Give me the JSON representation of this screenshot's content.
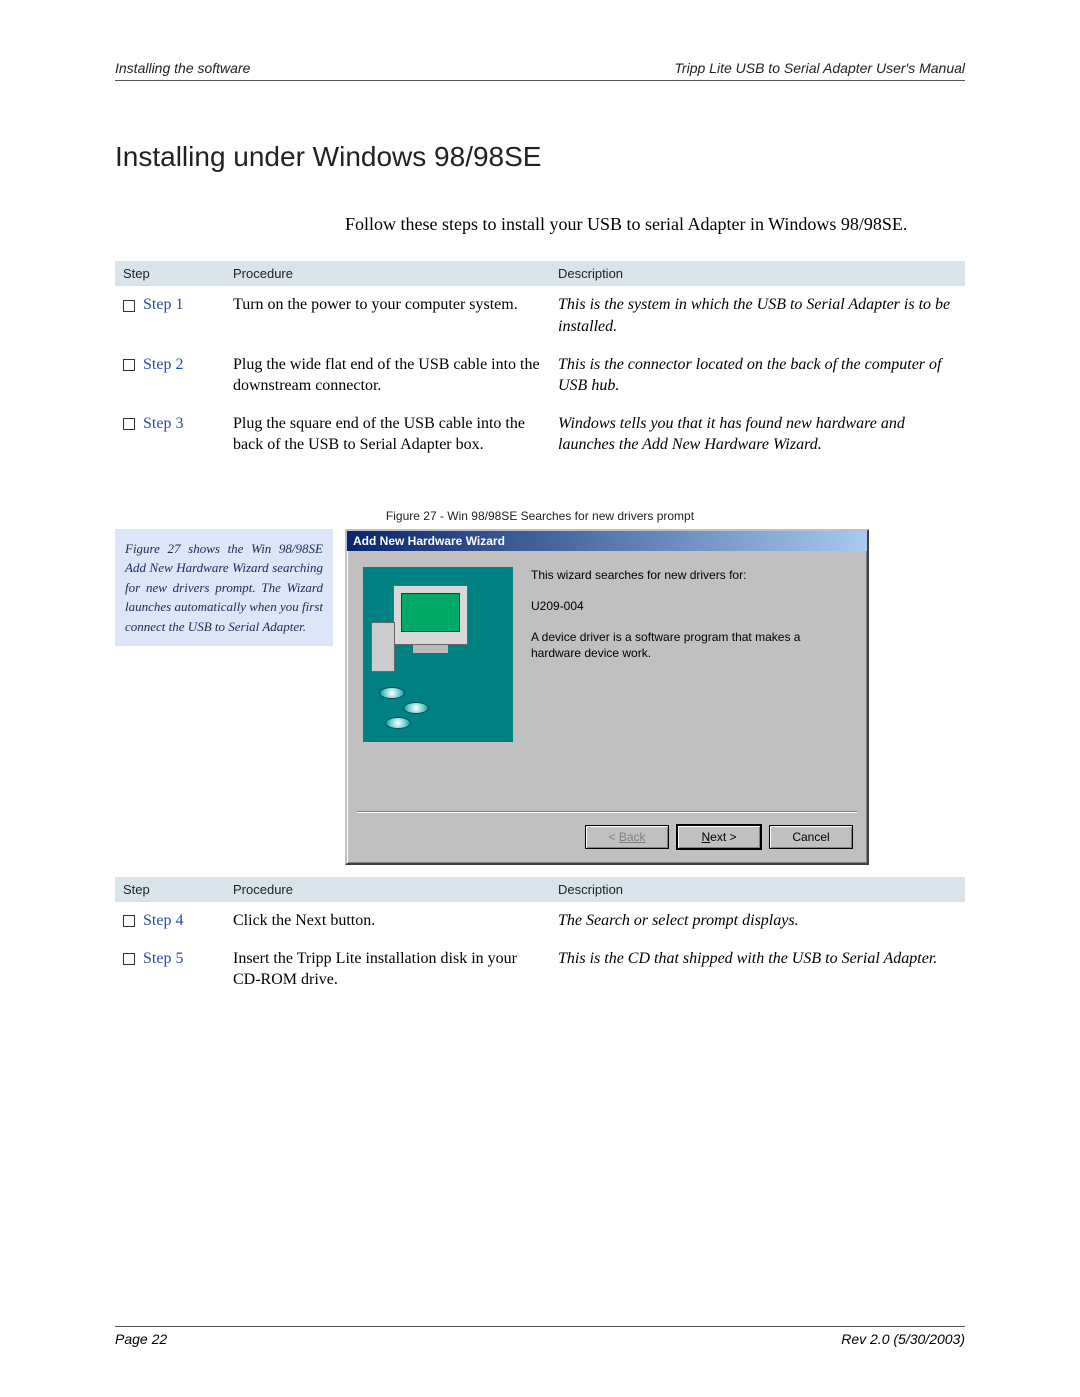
{
  "header": {
    "left": "Installing the software",
    "right": "Tripp Lite USB to Serial Adapter User's Manual"
  },
  "title": "Installing under Windows 98/98SE",
  "intro": "Follow these steps to install your USB to serial Adapter in Windows 98/98SE.",
  "table_headers": {
    "step": "Step",
    "procedure": "Procedure",
    "description": "Description"
  },
  "steps_a": [
    {
      "label": "Step 1",
      "procedure": "Turn on the power to your computer system.",
      "description": "This is the system in which the USB to Serial Adapter is to be installed."
    },
    {
      "label": "Step 2",
      "procedure": "Plug the wide flat end of the USB cable into the downstream connector.",
      "description": "This is the connector located on the back of the computer of USB hub."
    },
    {
      "label": "Step 3",
      "procedure": "Plug the square end of the USB cable into the back of the USB to Serial Adapter box.",
      "description": "Windows tells you that it has found new hardware and launches the Add New Hardware Wizard."
    }
  ],
  "figure_caption": "Figure 27 - Win 98/98SE Searches for new drivers prompt",
  "sidebar_note": "Figure 27 shows the Win 98/98SE Add New Hardware Wizard searching for new drivers prompt. The Wizard launches automatically when you first connect the USB to Serial Adapter.",
  "dialog": {
    "title": "Add New Hardware Wizard",
    "line1": "This wizard searches for new drivers for:",
    "device": "U209-004",
    "line2": "A device driver is a software program that makes a hardware device work.",
    "back": "Back",
    "next": "Next >",
    "cancel": "Cancel"
  },
  "steps_b": [
    {
      "label": "Step 4",
      "procedure": "Click the Next button.",
      "description": "The Search or select prompt displays."
    },
    {
      "label": "Step 5",
      "procedure": "Insert the Tripp Lite installation disk in your CD-ROM drive.",
      "description": "This is the CD that shipped with the USB to Serial Adapter."
    }
  ],
  "footer": {
    "left": "Page 22",
    "right": "Rev 2.0 (5/30/2003)"
  },
  "colors": {
    "header_band": "#d8e4e9",
    "step_link": "#2a4aa8",
    "sidebar_bg": "#dce6f8",
    "win98_titlebar_start": "#08246b",
    "win98_titlebar_end": "#a6caf0",
    "win98_face": "#c0c0c0",
    "teal": "#008080"
  }
}
